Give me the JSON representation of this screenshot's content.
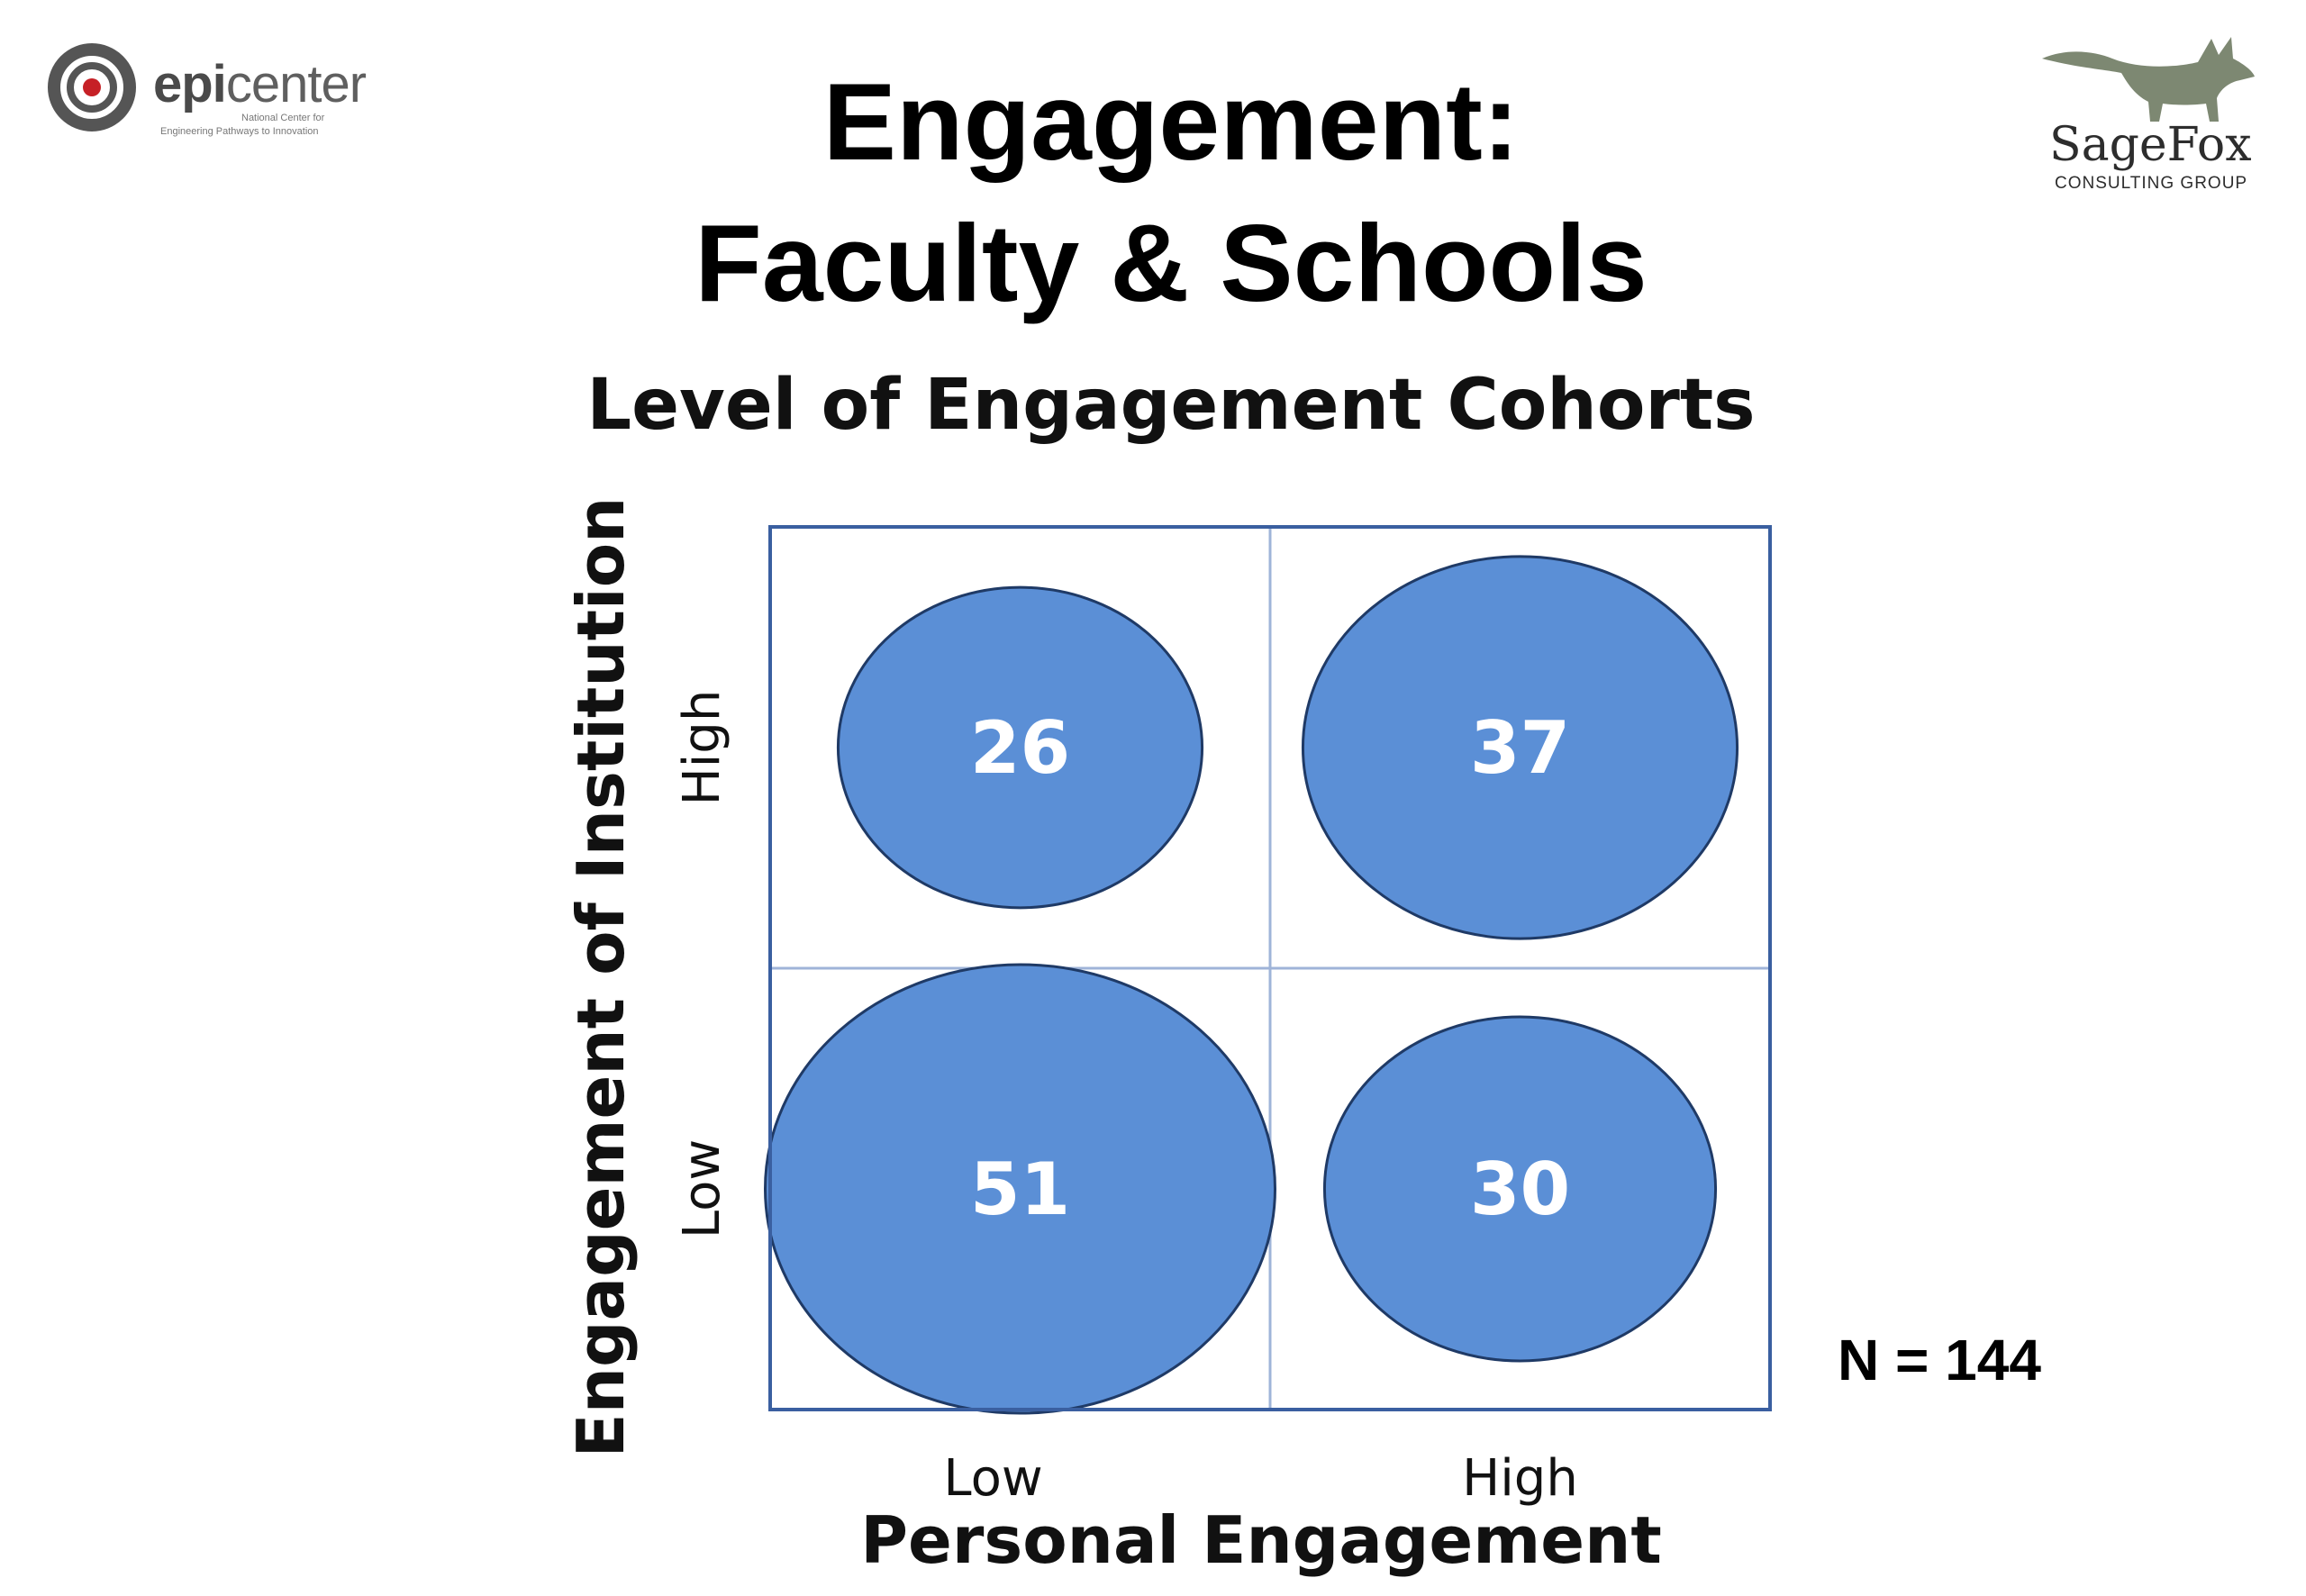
{
  "header": {
    "logo_left": {
      "icon": "epicenter-target-icon",
      "name_bold": "epi",
      "name_regular": "center",
      "tagline_1": "National Center for",
      "tagline_2": "Engineering Pathways to Innovation"
    },
    "logo_right": {
      "icon": "fox-icon",
      "name": "SageFox",
      "subtitle": "CONSULTING GROUP",
      "color": "#7d8872"
    },
    "title_line1": "Engagement:",
    "title_line2": "Faculty & Schools"
  },
  "chart_data": {
    "type": "bubble",
    "title": "Level of Engagement Cohorts",
    "xlabel": "Personal Engagement",
    "ylabel": "Engagement of Institution",
    "x_categories": [
      "Low",
      "High"
    ],
    "y_categories": [
      "Low",
      "High"
    ],
    "points": [
      {
        "x": "Low",
        "y": "High",
        "value": 26
      },
      {
        "x": "High",
        "y": "High",
        "value": 37
      },
      {
        "x": "Low",
        "y": "Low",
        "value": 51
      },
      {
        "x": "High",
        "y": "Low",
        "value": 30
      }
    ],
    "bubble_color": "#5b8fd6",
    "grid": true
  },
  "note": "N = 144"
}
